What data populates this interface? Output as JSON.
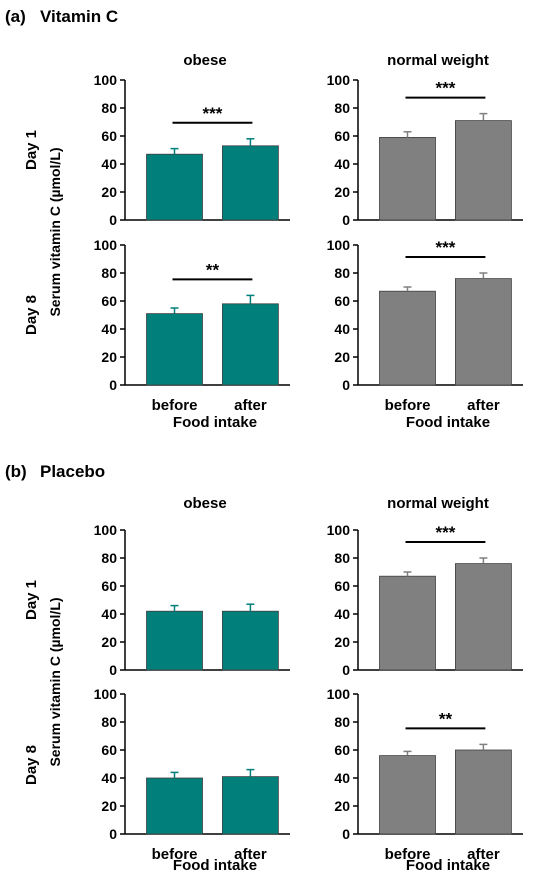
{
  "colors": {
    "obese_bar": "#007F7B",
    "normal_bar": "#808080",
    "bar_edge": "#404040",
    "axis": "#000000"
  },
  "figure": {
    "panels": [
      {
        "label": "(a)",
        "title": "Vitamin C",
        "col_titles": [
          "obese",
          "normal weight"
        ],
        "row_titles": [
          "Day 1",
          "Day 8"
        ],
        "ylabel": "Serum vitamin C (µmol/L)",
        "xlabel": "Food intake",
        "categories": [
          "before",
          "after"
        ]
      },
      {
        "label": "(b)",
        "title": "Placebo",
        "col_titles": [
          "obese",
          "normal weight"
        ],
        "row_titles": [
          "Day 1",
          "Day 8"
        ],
        "ylabel": "Serum vitamin C (µmol/L)",
        "xlabel": "Food intake",
        "categories": [
          "before",
          "after"
        ]
      }
    ]
  },
  "chart_data": [
    {
      "type": "bar",
      "panel": "(a)",
      "group": "obese",
      "day": "Day 1",
      "categories": [
        "before",
        "after"
      ],
      "values": [
        47,
        53
      ],
      "errors": [
        4,
        5
      ],
      "ylim": [
        0,
        100
      ],
      "yticks": [
        0,
        20,
        40,
        60,
        80,
        100
      ],
      "significance": "***"
    },
    {
      "type": "bar",
      "panel": "(a)",
      "group": "normal weight",
      "day": "Day 1",
      "categories": [
        "before",
        "after"
      ],
      "values": [
        59,
        71
      ],
      "errors": [
        4,
        5
      ],
      "ylim": [
        0,
        100
      ],
      "yticks": [
        0,
        20,
        40,
        60,
        80,
        100
      ],
      "significance": "***"
    },
    {
      "type": "bar",
      "panel": "(a)",
      "group": "obese",
      "day": "Day 8",
      "categories": [
        "before",
        "after"
      ],
      "values": [
        51,
        58
      ],
      "errors": [
        4,
        6
      ],
      "ylim": [
        0,
        100
      ],
      "yticks": [
        0,
        20,
        40,
        60,
        80,
        100
      ],
      "significance": "**"
    },
    {
      "type": "bar",
      "panel": "(a)",
      "group": "normal weight",
      "day": "Day 8",
      "categories": [
        "before",
        "after"
      ],
      "values": [
        67,
        76
      ],
      "errors": [
        3,
        4
      ],
      "ylim": [
        0,
        100
      ],
      "yticks": [
        0,
        20,
        40,
        60,
        80,
        100
      ],
      "significance": "***"
    },
    {
      "type": "bar",
      "panel": "(b)",
      "group": "obese",
      "day": "Day 1",
      "categories": [
        "before",
        "after"
      ],
      "values": [
        42,
        42
      ],
      "errors": [
        4,
        5
      ],
      "ylim": [
        0,
        100
      ],
      "yticks": [
        0,
        20,
        40,
        60,
        80,
        100
      ],
      "significance": ""
    },
    {
      "type": "bar",
      "panel": "(b)",
      "group": "normal weight",
      "day": "Day 1",
      "categories": [
        "before",
        "after"
      ],
      "values": [
        67,
        76
      ],
      "errors": [
        3,
        4
      ],
      "ylim": [
        0,
        100
      ],
      "yticks": [
        0,
        20,
        40,
        60,
        80,
        100
      ],
      "significance": "***"
    },
    {
      "type": "bar",
      "panel": "(b)",
      "group": "obese",
      "day": "Day 8",
      "categories": [
        "before",
        "after"
      ],
      "values": [
        40,
        41
      ],
      "errors": [
        4,
        5
      ],
      "ylim": [
        0,
        100
      ],
      "yticks": [
        0,
        20,
        40,
        60,
        80,
        100
      ],
      "significance": ""
    },
    {
      "type": "bar",
      "panel": "(b)",
      "group": "normal weight",
      "day": "Day 8",
      "categories": [
        "before",
        "after"
      ],
      "values": [
        56,
        60
      ],
      "errors": [
        3,
        4
      ],
      "ylim": [
        0,
        100
      ],
      "yticks": [
        0,
        20,
        40,
        60,
        80,
        100
      ],
      "significance": "**"
    }
  ]
}
